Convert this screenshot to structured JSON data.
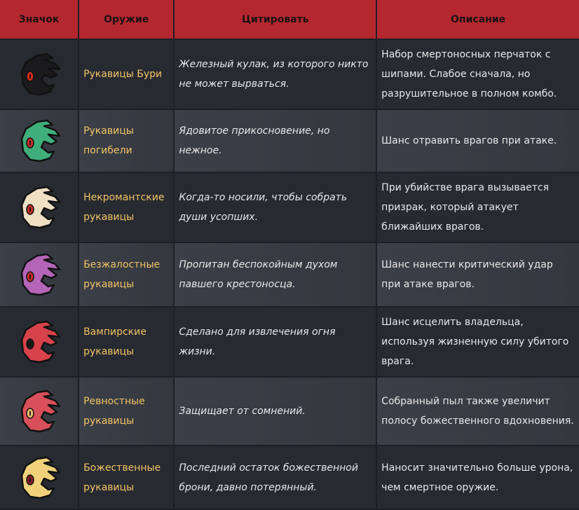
{
  "headers": [
    "Значок",
    "Оружие",
    "Цитировать",
    "Описание"
  ],
  "colors": {
    "header": "#b5272f",
    "name": "#f3c466"
  },
  "rows": [
    {
      "icon": "storm-gauntlet-icon",
      "color": "#1b1b1e",
      "eye": "#d8301f",
      "name": "Рукавицы Бури",
      "quote": "Железный кулак, из которого никто не может вырваться.",
      "desc": "Набор смертоносных перчаток с шипами. Слабое сначала, но разрушительное в полном комбо."
    },
    {
      "icon": "doom-gauntlet-icon",
      "color": "#3fae7a",
      "eye": "#c8302a",
      "name": "Рукавицы погибели",
      "quote": "Ядовитое прикосновение, но нежное.",
      "desc": "Шанс отравить врагов при атаке."
    },
    {
      "icon": "necromancer-gauntlet-icon",
      "color": "#efe0c4",
      "eye": "#c8302a",
      "name": "Некромантские рукавицы",
      "quote": "Когда-то носили, чтобы собрать души усопших.",
      "desc": "При убийстве врага вызывается призрак, который атакует ближайших врагов."
    },
    {
      "icon": "merciless-gauntlet-icon",
      "color": "#b565b8",
      "eye": "#c8302a",
      "name": "Безжалостные рукавицы",
      "quote": "Пропитан беспокойным духом павшего крестоносца.",
      "desc": "Шанс нанести критический удар при атаке врагов."
    },
    {
      "icon": "vampire-gauntlet-icon",
      "color": "#d8424b",
      "eye": "#1a1a1a",
      "name": "Вампирские рукавицы",
      "quote": "Сделано для извлечения огня жизни.",
      "desc": "Шанс исцелить владельца, используя жизненную силу убитого врага."
    },
    {
      "icon": "zealous-gauntlet-icon",
      "color": "#d9505a",
      "eye": "#f0c070",
      "name": "Ревностные рукавицы",
      "quote": "Защищает от сомнений.",
      "desc": "Собранный пыл также увеличит полосу божественного вдохновения."
    },
    {
      "icon": "divine-gauntlet-icon",
      "color": "#f1d27a",
      "eye": "#8a1f2a",
      "name": "Божественные рукавицы",
      "quote": "Последний остаток божественной брони, давно потерянный.",
      "desc": "Наносит значительно больше урона, чем смертное оружие."
    }
  ]
}
